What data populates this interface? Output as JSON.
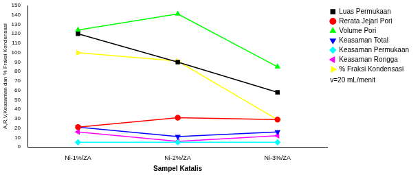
{
  "chart_data": {
    "type": "line",
    "x_label": "Sampel Katalis",
    "y_label": "A,R,V,Keasaman dan % Fraksi Kondensasi",
    "annotation": "v=20 mL/menit",
    "categories": [
      "Ni-1%/ZA",
      "Ni-2%/ZA",
      "Ni-3%/ZA"
    ],
    "series": [
      {
        "name": "Luas Permukaan",
        "color": "#000000",
        "marker": "square",
        "values": [
          120,
          90,
          58
        ]
      },
      {
        "name": "Rerata Jejari Pori",
        "color": "#ff0000",
        "marker": "circle",
        "values": [
          21,
          31,
          29
        ]
      },
      {
        "name": "Volume Pori",
        "color": "#00ff00",
        "marker": "triangle",
        "values": [
          124,
          141,
          85
        ]
      },
      {
        "name": "Keasaman Total",
        "color": "#0000ff",
        "marker": "triangle_down",
        "values": [
          21,
          11,
          16
        ]
      },
      {
        "name": "Keasaman Permukaan",
        "color": "#00ffff",
        "marker": "diamond",
        "values": [
          5,
          5,
          5
        ]
      },
      {
        "name": "Keasaman Rongga",
        "color": "#ff00ff",
        "marker": "triangle_left",
        "values": [
          16,
          6,
          12
        ]
      },
      {
        "name": "% Fraksi Kondensasi",
        "color": "#ffff00",
        "marker": "triangle_right",
        "values": [
          100,
          91,
          29
        ]
      }
    ],
    "ylim": [
      0,
      150
    ],
    "yticks": [
      0,
      10,
      20,
      30,
      40,
      50,
      60,
      70,
      80,
      90,
      100,
      110,
      120,
      130,
      140,
      150
    ],
    "grid": false,
    "legend": "right"
  }
}
